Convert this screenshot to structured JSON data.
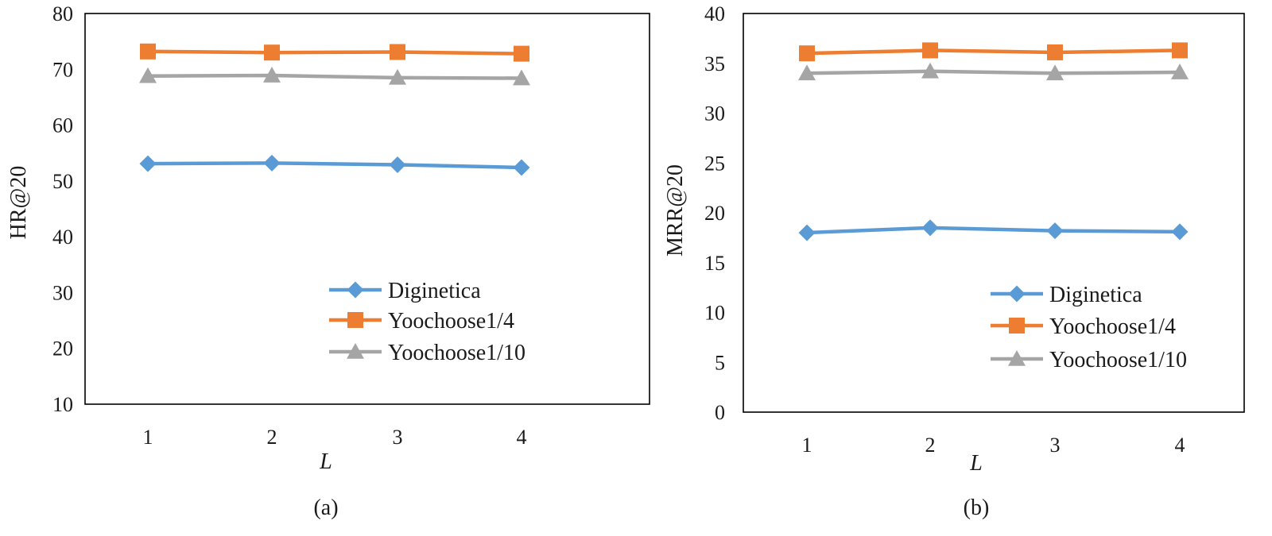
{
  "colors": {
    "Diginetica": "#5b9bd5",
    "Yoochoose1/4": "#ed7d31",
    "Yoochoose1/10": "#a5a5a5"
  },
  "chart_data": [
    {
      "type": "line",
      "caption": "(a)",
      "xlabel": "L",
      "ylabel": "HR@20",
      "x": [
        1,
        2,
        3,
        4
      ],
      "ylim": [
        10,
        80
      ],
      "yticks": [
        10,
        20,
        30,
        40,
        50,
        60,
        70,
        80
      ],
      "legend_location": "bottom-right",
      "series": [
        {
          "name": "Diginetica",
          "marker": "diamond",
          "values": [
            53.1,
            53.2,
            52.9,
            52.4
          ]
        },
        {
          "name": "Yoochoose1/4",
          "marker": "square",
          "values": [
            73.2,
            73.0,
            73.1,
            72.8
          ]
        },
        {
          "name": "Yoochoose1/10",
          "marker": "triangle",
          "values": [
            68.8,
            68.9,
            68.5,
            68.4
          ]
        }
      ]
    },
    {
      "type": "line",
      "caption": "(b)",
      "xlabel": "L",
      "ylabel": "MRR@20",
      "x": [
        1,
        2,
        3,
        4
      ],
      "ylim": [
        0,
        40
      ],
      "yticks": [
        0,
        5,
        10,
        15,
        20,
        25,
        30,
        35,
        40
      ],
      "legend_location": "bottom-right",
      "series": [
        {
          "name": "Diginetica",
          "marker": "diamond",
          "values": [
            18.0,
            18.5,
            18.2,
            18.1
          ]
        },
        {
          "name": "Yoochoose1/4",
          "marker": "square",
          "values": [
            36.0,
            36.3,
            36.1,
            36.3
          ]
        },
        {
          "name": "Yoochoose1/10",
          "marker": "triangle",
          "values": [
            34.0,
            34.2,
            34.0,
            34.1
          ]
        }
      ]
    }
  ]
}
